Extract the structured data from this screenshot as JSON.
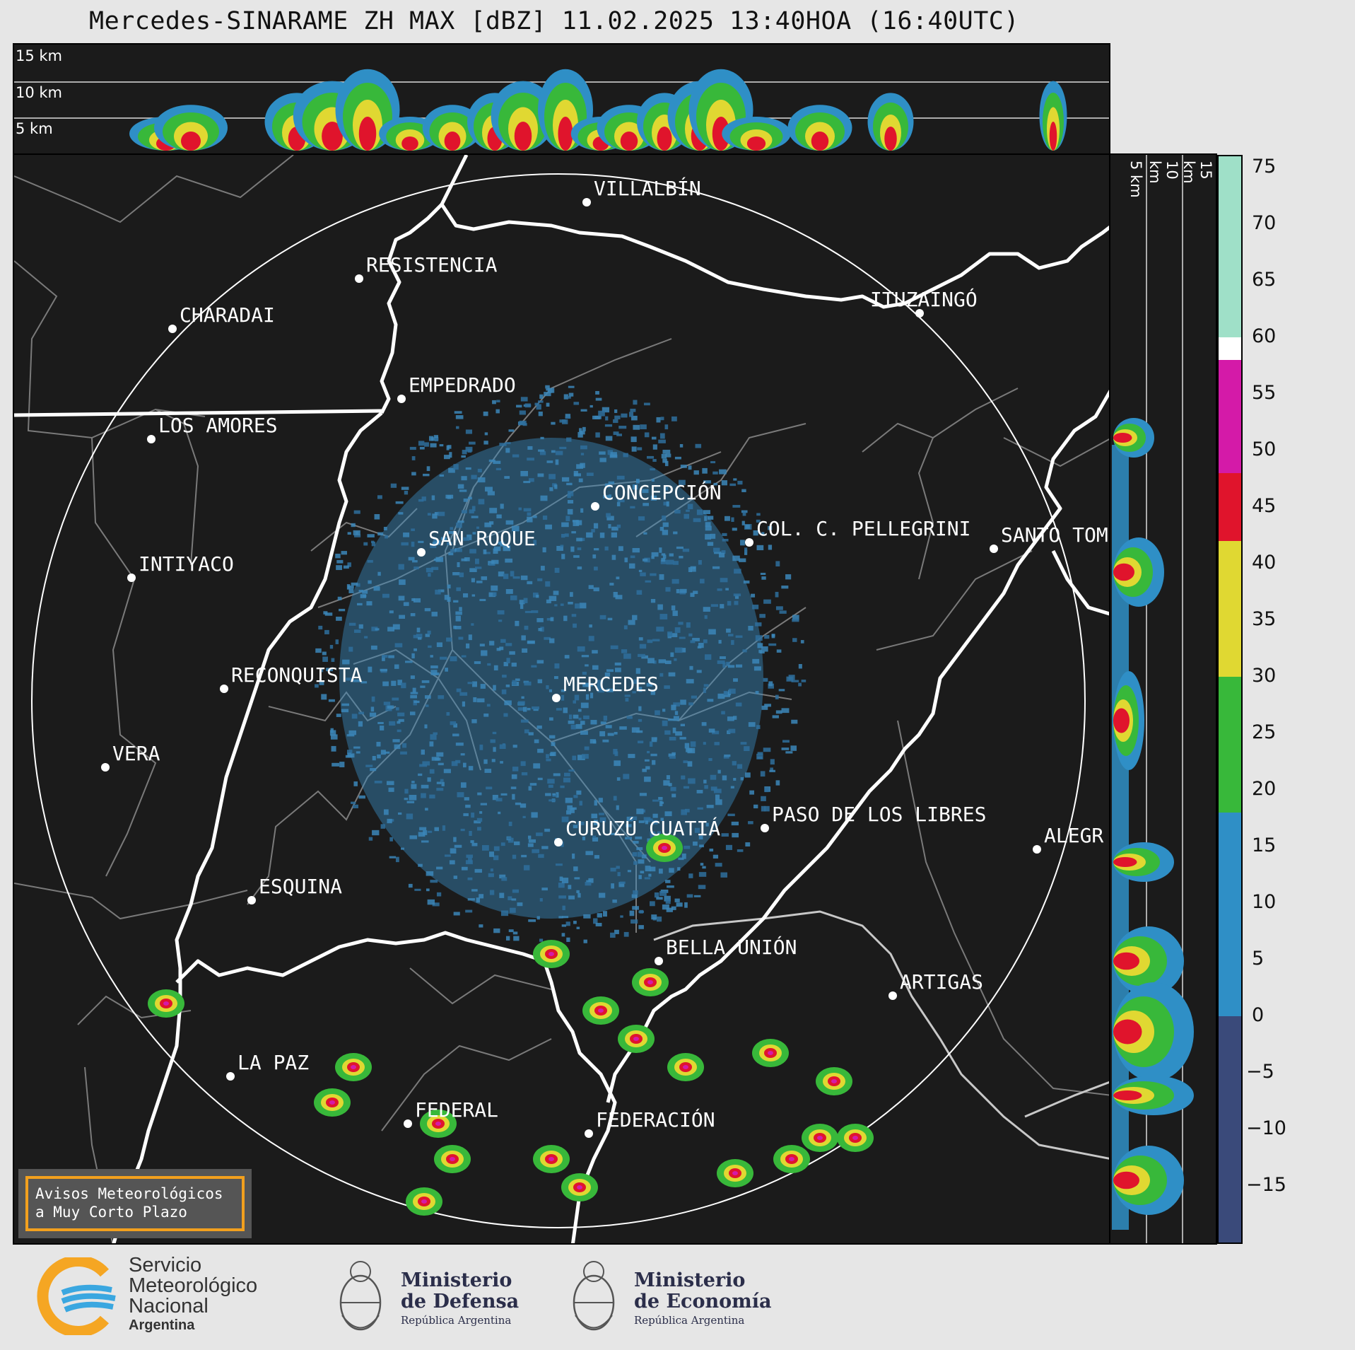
{
  "title": "Mercedes-SINARAME ZH MAX [dBZ] 11.02.2025 13:40HOA (16:40UTC)",
  "top_panel": {
    "altitude_labels": [
      "15 km",
      "10 km",
      "5 km"
    ]
  },
  "side_panel": {
    "altitude_labels": [
      "5 km",
      "10 km",
      "15 km"
    ]
  },
  "colorbar": {
    "ticks": [
      "75",
      "70",
      "65",
      "60",
      "55",
      "50",
      "45",
      "40",
      "35",
      "30",
      "25",
      "20",
      "15",
      "10",
      "5",
      "0",
      "−5",
      "−10",
      "−15"
    ],
    "colors": {
      "range_-20_0": "#3a4a7a",
      "range_0_18": "#2f8fc6",
      "range_18_30": "#38b83a",
      "range_30_42": "#e0d832",
      "range_42_48": "#e0142c",
      "range_48_58": "#d41aa8",
      "range_58_60": "#ffffff",
      "range_60_76": "#9fe0c8"
    }
  },
  "map": {
    "radar_center": "MERCEDES",
    "cities": [
      {
        "name": "VILLALBÍN"
      },
      {
        "name": "RESISTENCIA"
      },
      {
        "name": "CHARADAI"
      },
      {
        "name": "ITUZAINGÓ"
      },
      {
        "name": "EMPEDRADO"
      },
      {
        "name": "LOS AMORES"
      },
      {
        "name": "CONCEPCIÓN"
      },
      {
        "name": "SAN ROQUE"
      },
      {
        "name": "COL. C. PELLEGRINI"
      },
      {
        "name": "SANTO TOM"
      },
      {
        "name": "INTIYACO"
      },
      {
        "name": "RECONQUISTA"
      },
      {
        "name": "MERCEDES"
      },
      {
        "name": "VERA"
      },
      {
        "name": "CURUZÚ CUATIÁ"
      },
      {
        "name": "PASO DE LOS LIBRES"
      },
      {
        "name": "ALEGR"
      },
      {
        "name": "ESQUINA"
      },
      {
        "name": "BELLA UNIÓN"
      },
      {
        "name": "ARTIGAS"
      },
      {
        "name": "LA PAZ"
      },
      {
        "name": "FEDERAL"
      },
      {
        "name": "FEDERACIÓN"
      }
    ]
  },
  "avisos": {
    "line1": "Avisos Meteorológicos",
    "line2": "a Muy Corto Plazo"
  },
  "footer": {
    "smn": {
      "line1": "Servicio",
      "line2": "Meteorológico",
      "line3": "Nacional",
      "line4": "Argentina"
    },
    "defensa": {
      "line1": "Ministerio",
      "line2": "de Defensa",
      "line3": "República Argentina"
    },
    "economia": {
      "line1": "Ministerio",
      "line2": "de Economía",
      "line3": "República Argentina"
    }
  }
}
